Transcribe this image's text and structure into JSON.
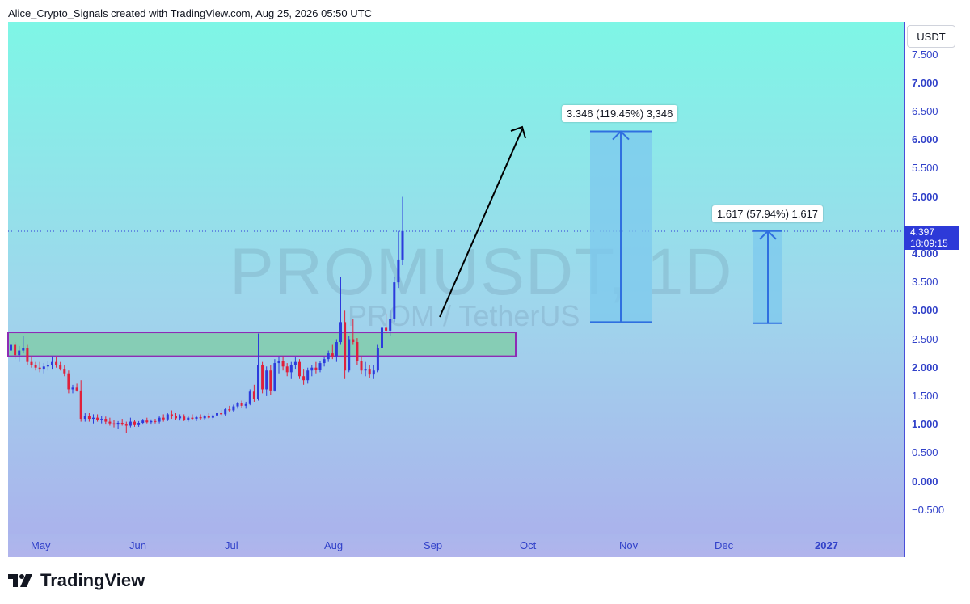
{
  "header": {
    "text": "Alice_Crypto_Signals created with TradingView.com, Aug 25, 2026 05:50 UTC"
  },
  "watermark": {
    "symbol": "PROMUSDT, 1D",
    "description": "PROM / TetherUS"
  },
  "price_axis": {
    "unit": "USDT",
    "ticks": [
      {
        "value": 7.5,
        "label": "7.500",
        "major": false
      },
      {
        "value": 7.0,
        "label": "7.000",
        "major": true
      },
      {
        "value": 6.5,
        "label": "6.500",
        "major": false
      },
      {
        "value": 6.0,
        "label": "6.000",
        "major": true
      },
      {
        "value": 5.5,
        "label": "5.500",
        "major": false
      },
      {
        "value": 5.0,
        "label": "5.000",
        "major": true
      },
      {
        "value": 4.0,
        "label": "4.000",
        "major": true
      },
      {
        "value": 3.5,
        "label": "3.500",
        "major": false
      },
      {
        "value": 3.0,
        "label": "3.000",
        "major": true
      },
      {
        "value": 2.5,
        "label": "2.500",
        "major": false
      },
      {
        "value": 2.0,
        "label": "2.000",
        "major": true
      },
      {
        "value": 1.5,
        "label": "1.500",
        "major": false
      },
      {
        "value": 1.0,
        "label": "1.000",
        "major": true
      },
      {
        "value": 0.5,
        "label": "0.500",
        "major": false
      },
      {
        "value": 0.0,
        "label": "0.000",
        "major": true
      },
      {
        "value": -0.5,
        "label": "−0.500",
        "major": false
      }
    ],
    "current_price": "4.397",
    "countdown": "18:09:15"
  },
  "time_axis": {
    "labels": [
      {
        "label": "May",
        "year": false
      },
      {
        "label": "Jun",
        "year": false
      },
      {
        "label": "Jul",
        "year": false
      },
      {
        "label": "Aug",
        "year": false
      },
      {
        "label": "Sep",
        "year": false
      },
      {
        "label": "Oct",
        "year": false
      },
      {
        "label": "Nov",
        "year": false
      },
      {
        "label": "Dec",
        "year": false
      },
      {
        "label": "2027",
        "year": true
      }
    ]
  },
  "measurements": [
    {
      "label": "3.346 (119.45%) 3,346",
      "from": 2.8,
      "to": 6.15
    },
    {
      "label": "1.617 (57.94%) 1,617",
      "from": 2.78,
      "to": 4.4
    }
  ],
  "footer": {
    "brand": "TradingView"
  },
  "colors": {
    "up": "#2c3bdc",
    "down": "#e0203a",
    "zone_fill": "#86cdb5",
    "zone_border": "#8e2bb5",
    "measure_fill": "#7cc8ee",
    "measure_line": "#2f6fe0",
    "axis_text": "#3141c9"
  },
  "chart_data": {
    "type": "candlestick",
    "symbol": "PROMUSDT",
    "interval": "1D",
    "ylim": [
      -0.9,
      8.0
    ],
    "current_price": 4.397,
    "support_zone": {
      "low": 2.2,
      "high": 2.62
    },
    "candles": [
      [
        2.3,
        2.48,
        2.2,
        2.4
      ],
      [
        2.4,
        2.45,
        2.15,
        2.22
      ],
      [
        2.22,
        2.38,
        2.1,
        2.3
      ],
      [
        2.3,
        2.55,
        2.25,
        2.35
      ],
      [
        2.35,
        2.4,
        2.05,
        2.1
      ],
      [
        2.1,
        2.2,
        2.0,
        2.05
      ],
      [
        2.05,
        2.1,
        1.95,
        2.0
      ],
      [
        2.0,
        2.1,
        1.92,
        1.98
      ],
      [
        1.98,
        2.08,
        1.9,
        2.02
      ],
      [
        2.02,
        2.12,
        1.95,
        2.05
      ],
      [
        2.05,
        2.2,
        1.98,
        2.1
      ],
      [
        2.1,
        2.18,
        2.0,
        2.05
      ],
      [
        2.05,
        2.1,
        1.95,
        1.98
      ],
      [
        1.98,
        2.05,
        1.85,
        1.9
      ],
      [
        1.9,
        1.95,
        1.55,
        1.62
      ],
      [
        1.62,
        1.7,
        1.55,
        1.65
      ],
      [
        1.65,
        1.72,
        1.58,
        1.6
      ],
      [
        1.6,
        1.78,
        1.05,
        1.1
      ],
      [
        1.1,
        1.2,
        1.05,
        1.15
      ],
      [
        1.15,
        1.2,
        1.05,
        1.1
      ],
      [
        1.1,
        1.18,
        1.02,
        1.12
      ],
      [
        1.12,
        1.18,
        1.05,
        1.08
      ],
      [
        1.08,
        1.15,
        1.02,
        1.1
      ],
      [
        1.1,
        1.14,
        1.0,
        1.05
      ],
      [
        1.05,
        1.12,
        0.98,
        1.02
      ],
      [
        1.02,
        1.08,
        0.95,
        1.0
      ],
      [
        1.0,
        1.06,
        0.92,
        1.03
      ],
      [
        1.03,
        1.1,
        0.98,
        1.0
      ],
      [
        1.0,
        1.05,
        0.85,
        0.98
      ],
      [
        0.98,
        1.12,
        0.95,
        1.05
      ],
      [
        1.05,
        1.08,
        0.96,
        0.99
      ],
      [
        0.99,
        1.06,
        0.96,
        1.03
      ],
      [
        1.03,
        1.1,
        1.0,
        1.07
      ],
      [
        1.07,
        1.12,
        1.02,
        1.04
      ],
      [
        1.04,
        1.09,
        1.0,
        1.06
      ],
      [
        1.06,
        1.1,
        1.02,
        1.05
      ],
      [
        1.05,
        1.15,
        1.02,
        1.12
      ],
      [
        1.12,
        1.18,
        1.05,
        1.09
      ],
      [
        1.09,
        1.2,
        1.06,
        1.18
      ],
      [
        1.18,
        1.25,
        1.1,
        1.15
      ],
      [
        1.15,
        1.2,
        1.08,
        1.11
      ],
      [
        1.11,
        1.18,
        1.07,
        1.14
      ],
      [
        1.14,
        1.18,
        1.06,
        1.08
      ],
      [
        1.08,
        1.15,
        1.05,
        1.12
      ],
      [
        1.12,
        1.18,
        1.08,
        1.1
      ],
      [
        1.1,
        1.16,
        1.06,
        1.13
      ],
      [
        1.13,
        1.18,
        1.08,
        1.11
      ],
      [
        1.11,
        1.17,
        1.08,
        1.15
      ],
      [
        1.15,
        1.2,
        1.1,
        1.12
      ],
      [
        1.12,
        1.18,
        1.09,
        1.16
      ],
      [
        1.16,
        1.22,
        1.12,
        1.2
      ],
      [
        1.2,
        1.26,
        1.15,
        1.18
      ],
      [
        1.18,
        1.3,
        1.15,
        1.27
      ],
      [
        1.27,
        1.33,
        1.22,
        1.25
      ],
      [
        1.25,
        1.35,
        1.22,
        1.32
      ],
      [
        1.32,
        1.4,
        1.28,
        1.38
      ],
      [
        1.38,
        1.42,
        1.3,
        1.33
      ],
      [
        1.33,
        1.4,
        1.28,
        1.36
      ],
      [
        1.36,
        1.62,
        1.34,
        1.58
      ],
      [
        1.58,
        1.7,
        1.4,
        1.45
      ],
      [
        1.45,
        2.6,
        1.42,
        2.05
      ],
      [
        2.05,
        2.1,
        1.55,
        1.62
      ],
      [
        1.62,
        2.02,
        1.5,
        1.95
      ],
      [
        1.95,
        2.05,
        1.52,
        1.6
      ],
      [
        1.6,
        2.15,
        1.58,
        2.08
      ],
      [
        2.08,
        2.2,
        1.9,
        2.12
      ],
      [
        2.12,
        2.2,
        1.95,
        2.02
      ],
      [
        2.02,
        2.08,
        1.85,
        1.92
      ],
      [
        1.92,
        2.1,
        1.8,
        2.05
      ],
      [
        2.05,
        2.18,
        1.98,
        2.1
      ],
      [
        2.1,
        2.15,
        1.8,
        1.85
      ],
      [
        1.85,
        1.98,
        1.7,
        1.78
      ],
      [
        1.78,
        2.0,
        1.72,
        1.95
      ],
      [
        1.95,
        2.05,
        1.85,
        2.0
      ],
      [
        2.0,
        2.1,
        1.9,
        1.96
      ],
      [
        1.96,
        2.12,
        1.92,
        2.08
      ],
      [
        2.08,
        2.18,
        2.02,
        2.15
      ],
      [
        2.15,
        2.3,
        2.1,
        2.25
      ],
      [
        2.25,
        2.4,
        2.15,
        2.2
      ],
      [
        2.2,
        2.5,
        2.1,
        2.45
      ],
      [
        2.45,
        3.6,
        2.4,
        2.8
      ],
      [
        2.8,
        3.0,
        1.8,
        1.95
      ],
      [
        1.95,
        2.55,
        1.92,
        2.5
      ],
      [
        2.5,
        2.85,
        2.4,
        2.45
      ],
      [
        2.45,
        2.52,
        2.05,
        2.12
      ],
      [
        2.12,
        2.2,
        1.88,
        1.95
      ],
      [
        1.95,
        2.1,
        1.85,
        1.98
      ],
      [
        1.98,
        2.05,
        1.82,
        1.88
      ],
      [
        1.88,
        2.05,
        1.8,
        1.95
      ],
      [
        1.95,
        2.4,
        1.92,
        2.35
      ],
      [
        2.35,
        2.75,
        2.3,
        2.7
      ],
      [
        2.7,
        2.95,
        2.6,
        2.65
      ],
      [
        2.65,
        3.0,
        2.55,
        2.85
      ],
      [
        2.85,
        3.6,
        2.8,
        3.5
      ],
      [
        3.5,
        4.4,
        3.4,
        3.9
      ],
      [
        3.9,
        5.0,
        3.8,
        4.4
      ]
    ]
  }
}
